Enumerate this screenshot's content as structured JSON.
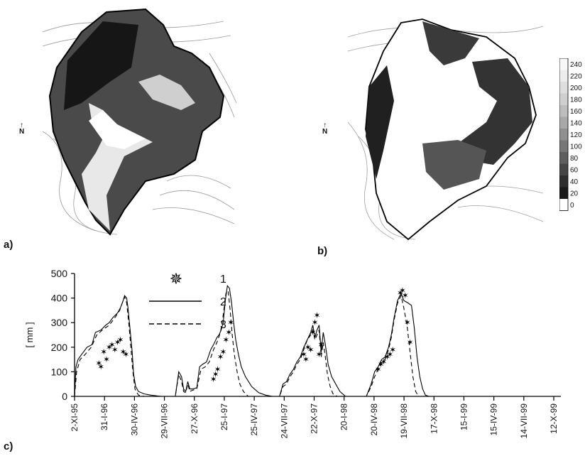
{
  "panels": {
    "a": "a)",
    "b": "b)",
    "c": "c)"
  },
  "north_marker": "N",
  "colorbar": {
    "ticks": [
      "240",
      "220",
      "200",
      "180",
      "160",
      "140",
      "120",
      "100",
      "80",
      "60",
      "40",
      "20",
      "0"
    ],
    "gradient": [
      "#f7f7f7",
      "#ececec",
      "#dedede",
      "#cfcfcf",
      "#bdbdbd",
      "#a8a8a8",
      "#909090",
      "#777777",
      "#5e5e5e",
      "#454545",
      "#2e2e2e",
      "#1a1a1a",
      "#ffffff"
    ]
  },
  "chart_data": {
    "type": "line",
    "ylabel": "[ mm ]",
    "ylim": [
      0,
      500
    ],
    "yticks": [
      0,
      100,
      200,
      300,
      400,
      500
    ],
    "xticks": [
      "2-XI-95",
      "31-I-96",
      "30-IV-96",
      "29-VII-96",
      "27-X-96",
      "25-I-97",
      "25-IV-97",
      "24-VII-97",
      "22-X-97",
      "20-I-98",
      "20-IV-98",
      "19-VII-98",
      "17-X-98",
      "15-I-99",
      "15-IV-99",
      "14-VII-99",
      "12-X-99"
    ],
    "legend": [
      {
        "id": "1",
        "label": "1",
        "style": "star"
      },
      {
        "id": "2",
        "label": "2",
        "style": "solid"
      },
      {
        "id": "3",
        "label": "3",
        "style": "dashed"
      }
    ],
    "series": [
      {
        "id": "2",
        "style": "solid",
        "points": [
          [
            0,
            0
          ],
          [
            2,
            120
          ],
          [
            5,
            150
          ],
          [
            10,
            170
          ],
          [
            18,
            200
          ],
          [
            25,
            210
          ],
          [
            30,
            260
          ],
          [
            38,
            270
          ],
          [
            45,
            290
          ],
          [
            50,
            300
          ],
          [
            55,
            320
          ],
          [
            62,
            340
          ],
          [
            66,
            360
          ],
          [
            70,
            390
          ],
          [
            72,
            410
          ],
          [
            75,
            400
          ],
          [
            77,
            360
          ],
          [
            80,
            270
          ],
          [
            83,
            180
          ],
          [
            85,
            90
          ],
          [
            88,
            40
          ],
          [
            92,
            20
          ],
          [
            100,
            10
          ],
          [
            110,
            5
          ],
          [
            125,
            0
          ],
          [
            145,
            0
          ],
          [
            150,
            100
          ],
          [
            154,
            80
          ],
          [
            157,
            30
          ],
          [
            160,
            20
          ],
          [
            163,
            60
          ],
          [
            166,
            30
          ],
          [
            170,
            30
          ],
          [
            176,
            35
          ],
          [
            180,
            120
          ],
          [
            184,
            130
          ],
          [
            190,
            140
          ],
          [
            196,
            190
          ],
          [
            200,
            210
          ],
          [
            205,
            240
          ],
          [
            208,
            250
          ],
          [
            211,
            270
          ],
          [
            214,
            300
          ],
          [
            217,
            390
          ],
          [
            220,
            450
          ],
          [
            223,
            440
          ],
          [
            226,
            380
          ],
          [
            229,
            300
          ],
          [
            232,
            230
          ],
          [
            236,
            170
          ],
          [
            240,
            120
          ],
          [
            246,
            80
          ],
          [
            255,
            40
          ],
          [
            265,
            15
          ],
          [
            275,
            5
          ],
          [
            285,
            0
          ],
          [
            295,
            0
          ],
          [
            300,
            50
          ],
          [
            305,
            60
          ],
          [
            310,
            90
          ],
          [
            315,
            110
          ],
          [
            320,
            140
          ],
          [
            325,
            160
          ],
          [
            330,
            200
          ],
          [
            335,
            230
          ],
          [
            340,
            260
          ],
          [
            343,
            290
          ],
          [
            346,
            240
          ],
          [
            349,
            270
          ],
          [
            352,
            290
          ],
          [
            355,
            180
          ],
          [
            358,
            260
          ],
          [
            361,
            210
          ],
          [
            365,
            130
          ],
          [
            370,
            80
          ],
          [
            376,
            50
          ],
          [
            382,
            20
          ],
          [
            390,
            0
          ],
          [
            420,
            0
          ],
          [
            427,
            50
          ],
          [
            432,
            100
          ],
          [
            437,
            120
          ],
          [
            442,
            150
          ],
          [
            447,
            160
          ],
          [
            452,
            200
          ],
          [
            456,
            250
          ],
          [
            460,
            320
          ],
          [
            465,
            390
          ],
          [
            470,
            420
          ],
          [
            474,
            390
          ],
          [
            480,
            380
          ],
          [
            485,
            370
          ],
          [
            489,
            280
          ],
          [
            493,
            160
          ],
          [
            497,
            80
          ],
          [
            501,
            30
          ],
          [
            505,
            5
          ],
          [
            510,
            0
          ],
          [
            620,
            0
          ]
        ]
      },
      {
        "id": "3",
        "style": "dashed",
        "points": [
          [
            0,
            0
          ],
          [
            3,
            100
          ],
          [
            8,
            150
          ],
          [
            15,
            170
          ],
          [
            24,
            200
          ],
          [
            32,
            250
          ],
          [
            40,
            270
          ],
          [
            50,
            290
          ],
          [
            58,
            320
          ],
          [
            65,
            350
          ],
          [
            70,
            390
          ],
          [
            72,
            405
          ],
          [
            75,
            380
          ],
          [
            78,
            300
          ],
          [
            81,
            200
          ],
          [
            84,
            100
          ],
          [
            87,
            30
          ],
          [
            92,
            5
          ],
          [
            100,
            0
          ],
          [
            145,
            0
          ],
          [
            150,
            90
          ],
          [
            154,
            60
          ],
          [
            157,
            20
          ],
          [
            160,
            15
          ],
          [
            163,
            50
          ],
          [
            166,
            20
          ],
          [
            170,
            25
          ],
          [
            176,
            30
          ],
          [
            182,
            110
          ],
          [
            188,
            120
          ],
          [
            194,
            140
          ],
          [
            200,
            190
          ],
          [
            205,
            220
          ],
          [
            210,
            260
          ],
          [
            214,
            330
          ],
          [
            218,
            420
          ],
          [
            221,
            430
          ],
          [
            224,
            350
          ],
          [
            227,
            250
          ],
          [
            230,
            170
          ],
          [
            234,
            100
          ],
          [
            238,
            50
          ],
          [
            243,
            20
          ],
          [
            250,
            0
          ],
          [
            295,
            0
          ],
          [
            300,
            40
          ],
          [
            305,
            50
          ],
          [
            310,
            80
          ],
          [
            315,
            100
          ],
          [
            320,
            130
          ],
          [
            325,
            150
          ],
          [
            330,
            190
          ],
          [
            335,
            230
          ],
          [
            340,
            250
          ],
          [
            343,
            270
          ],
          [
            346,
            230
          ],
          [
            349,
            250
          ],
          [
            352,
            270
          ],
          [
            355,
            160
          ],
          [
            358,
            220
          ],
          [
            361,
            160
          ],
          [
            364,
            90
          ],
          [
            368,
            40
          ],
          [
            372,
            10
          ],
          [
            378,
            0
          ],
          [
            420,
            0
          ],
          [
            427,
            40
          ],
          [
            432,
            80
          ],
          [
            437,
            110
          ],
          [
            442,
            140
          ],
          [
            447,
            150
          ],
          [
            452,
            190
          ],
          [
            456,
            240
          ],
          [
            460,
            310
          ],
          [
            465,
            380
          ],
          [
            470,
            410
          ],
          [
            474,
            360
          ],
          [
            479,
            280
          ],
          [
            483,
            180
          ],
          [
            487,
            80
          ],
          [
            491,
            20
          ],
          [
            495,
            0
          ],
          [
            620,
            0
          ]
        ]
      },
      {
        "id": "1",
        "style": "star",
        "points": [
          [
            35,
            135
          ],
          [
            38,
            120
          ],
          [
            42,
            180
          ],
          [
            46,
            150
          ],
          [
            50,
            200
          ],
          [
            54,
            210
          ],
          [
            58,
            190
          ],
          [
            62,
            220
          ],
          [
            66,
            230
          ],
          [
            70,
            180
          ],
          [
            74,
            170
          ],
          [
            200,
            70
          ],
          [
            203,
            90
          ],
          [
            206,
            110
          ],
          [
            210,
            160
          ],
          [
            214,
            180
          ],
          [
            218,
            230
          ],
          [
            222,
            260
          ],
          [
            225,
            300
          ],
          [
            330,
            170
          ],
          [
            333,
            150
          ],
          [
            336,
            200
          ],
          [
            340,
            190
          ],
          [
            343,
            260
          ],
          [
            346,
            300
          ],
          [
            349,
            330
          ],
          [
            352,
            170
          ],
          [
            355,
            210
          ],
          [
            437,
            110
          ],
          [
            441,
            130
          ],
          [
            445,
            140
          ],
          [
            450,
            160
          ],
          [
            454,
            170
          ],
          [
            458,
            190
          ],
          [
            469,
            420
          ],
          [
            472,
            430
          ],
          [
            476,
            410
          ],
          [
            479,
            300
          ],
          [
            483,
            220
          ]
        ]
      }
    ]
  }
}
